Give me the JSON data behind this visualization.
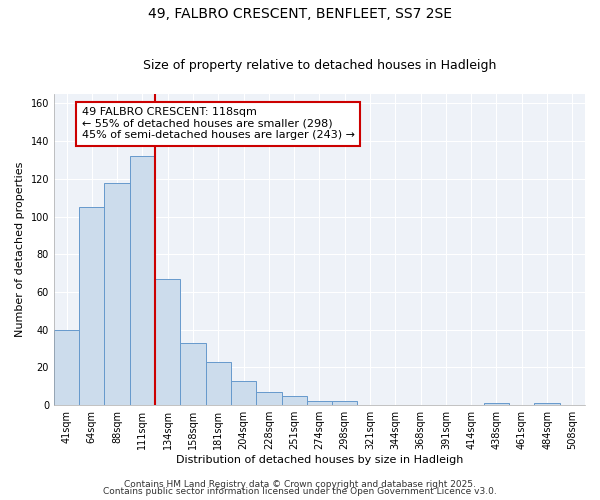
{
  "title": "49, FALBRO CRESCENT, BENFLEET, SS7 2SE",
  "subtitle": "Size of property relative to detached houses in Hadleigh",
  "xlabel": "Distribution of detached houses by size in Hadleigh",
  "ylabel": "Number of detached properties",
  "bin_labels": [
    "41sqm",
    "64sqm",
    "88sqm",
    "111sqm",
    "134sqm",
    "158sqm",
    "181sqm",
    "204sqm",
    "228sqm",
    "251sqm",
    "274sqm",
    "298sqm",
    "321sqm",
    "344sqm",
    "368sqm",
    "391sqm",
    "414sqm",
    "438sqm",
    "461sqm",
    "484sqm",
    "508sqm"
  ],
  "bar_heights": [
    40,
    105,
    118,
    132,
    67,
    33,
    23,
    13,
    7,
    5,
    2,
    2,
    0,
    0,
    0,
    0,
    0,
    1,
    0,
    1,
    0
  ],
  "bar_color": "#ccdcec",
  "bar_edge_color": "#6699cc",
  "bar_edge_width": 0.7,
  "red_line_x": 3.5,
  "red_line_color": "#cc0000",
  "annotation_line1": "49 FALBRO CRESCENT: 118sqm",
  "annotation_line2": "← 55% of detached houses are smaller (298)",
  "annotation_line3": "45% of semi-detached houses are larger (243) →",
  "annotation_box_color": "#ffffff",
  "annotation_box_edge_color": "#cc0000",
  "ylim": [
    0,
    165
  ],
  "yticks": [
    0,
    20,
    40,
    60,
    80,
    100,
    120,
    140,
    160
  ],
  "background_color": "#eef2f8",
  "grid_color": "#ffffff",
  "footer_line1": "Contains HM Land Registry data © Crown copyright and database right 2025.",
  "footer_line2": "Contains public sector information licensed under the Open Government Licence v3.0.",
  "title_fontsize": 10,
  "subtitle_fontsize": 9,
  "axis_label_fontsize": 8,
  "tick_fontsize": 7,
  "annotation_fontsize": 8,
  "footer_fontsize": 6.5
}
